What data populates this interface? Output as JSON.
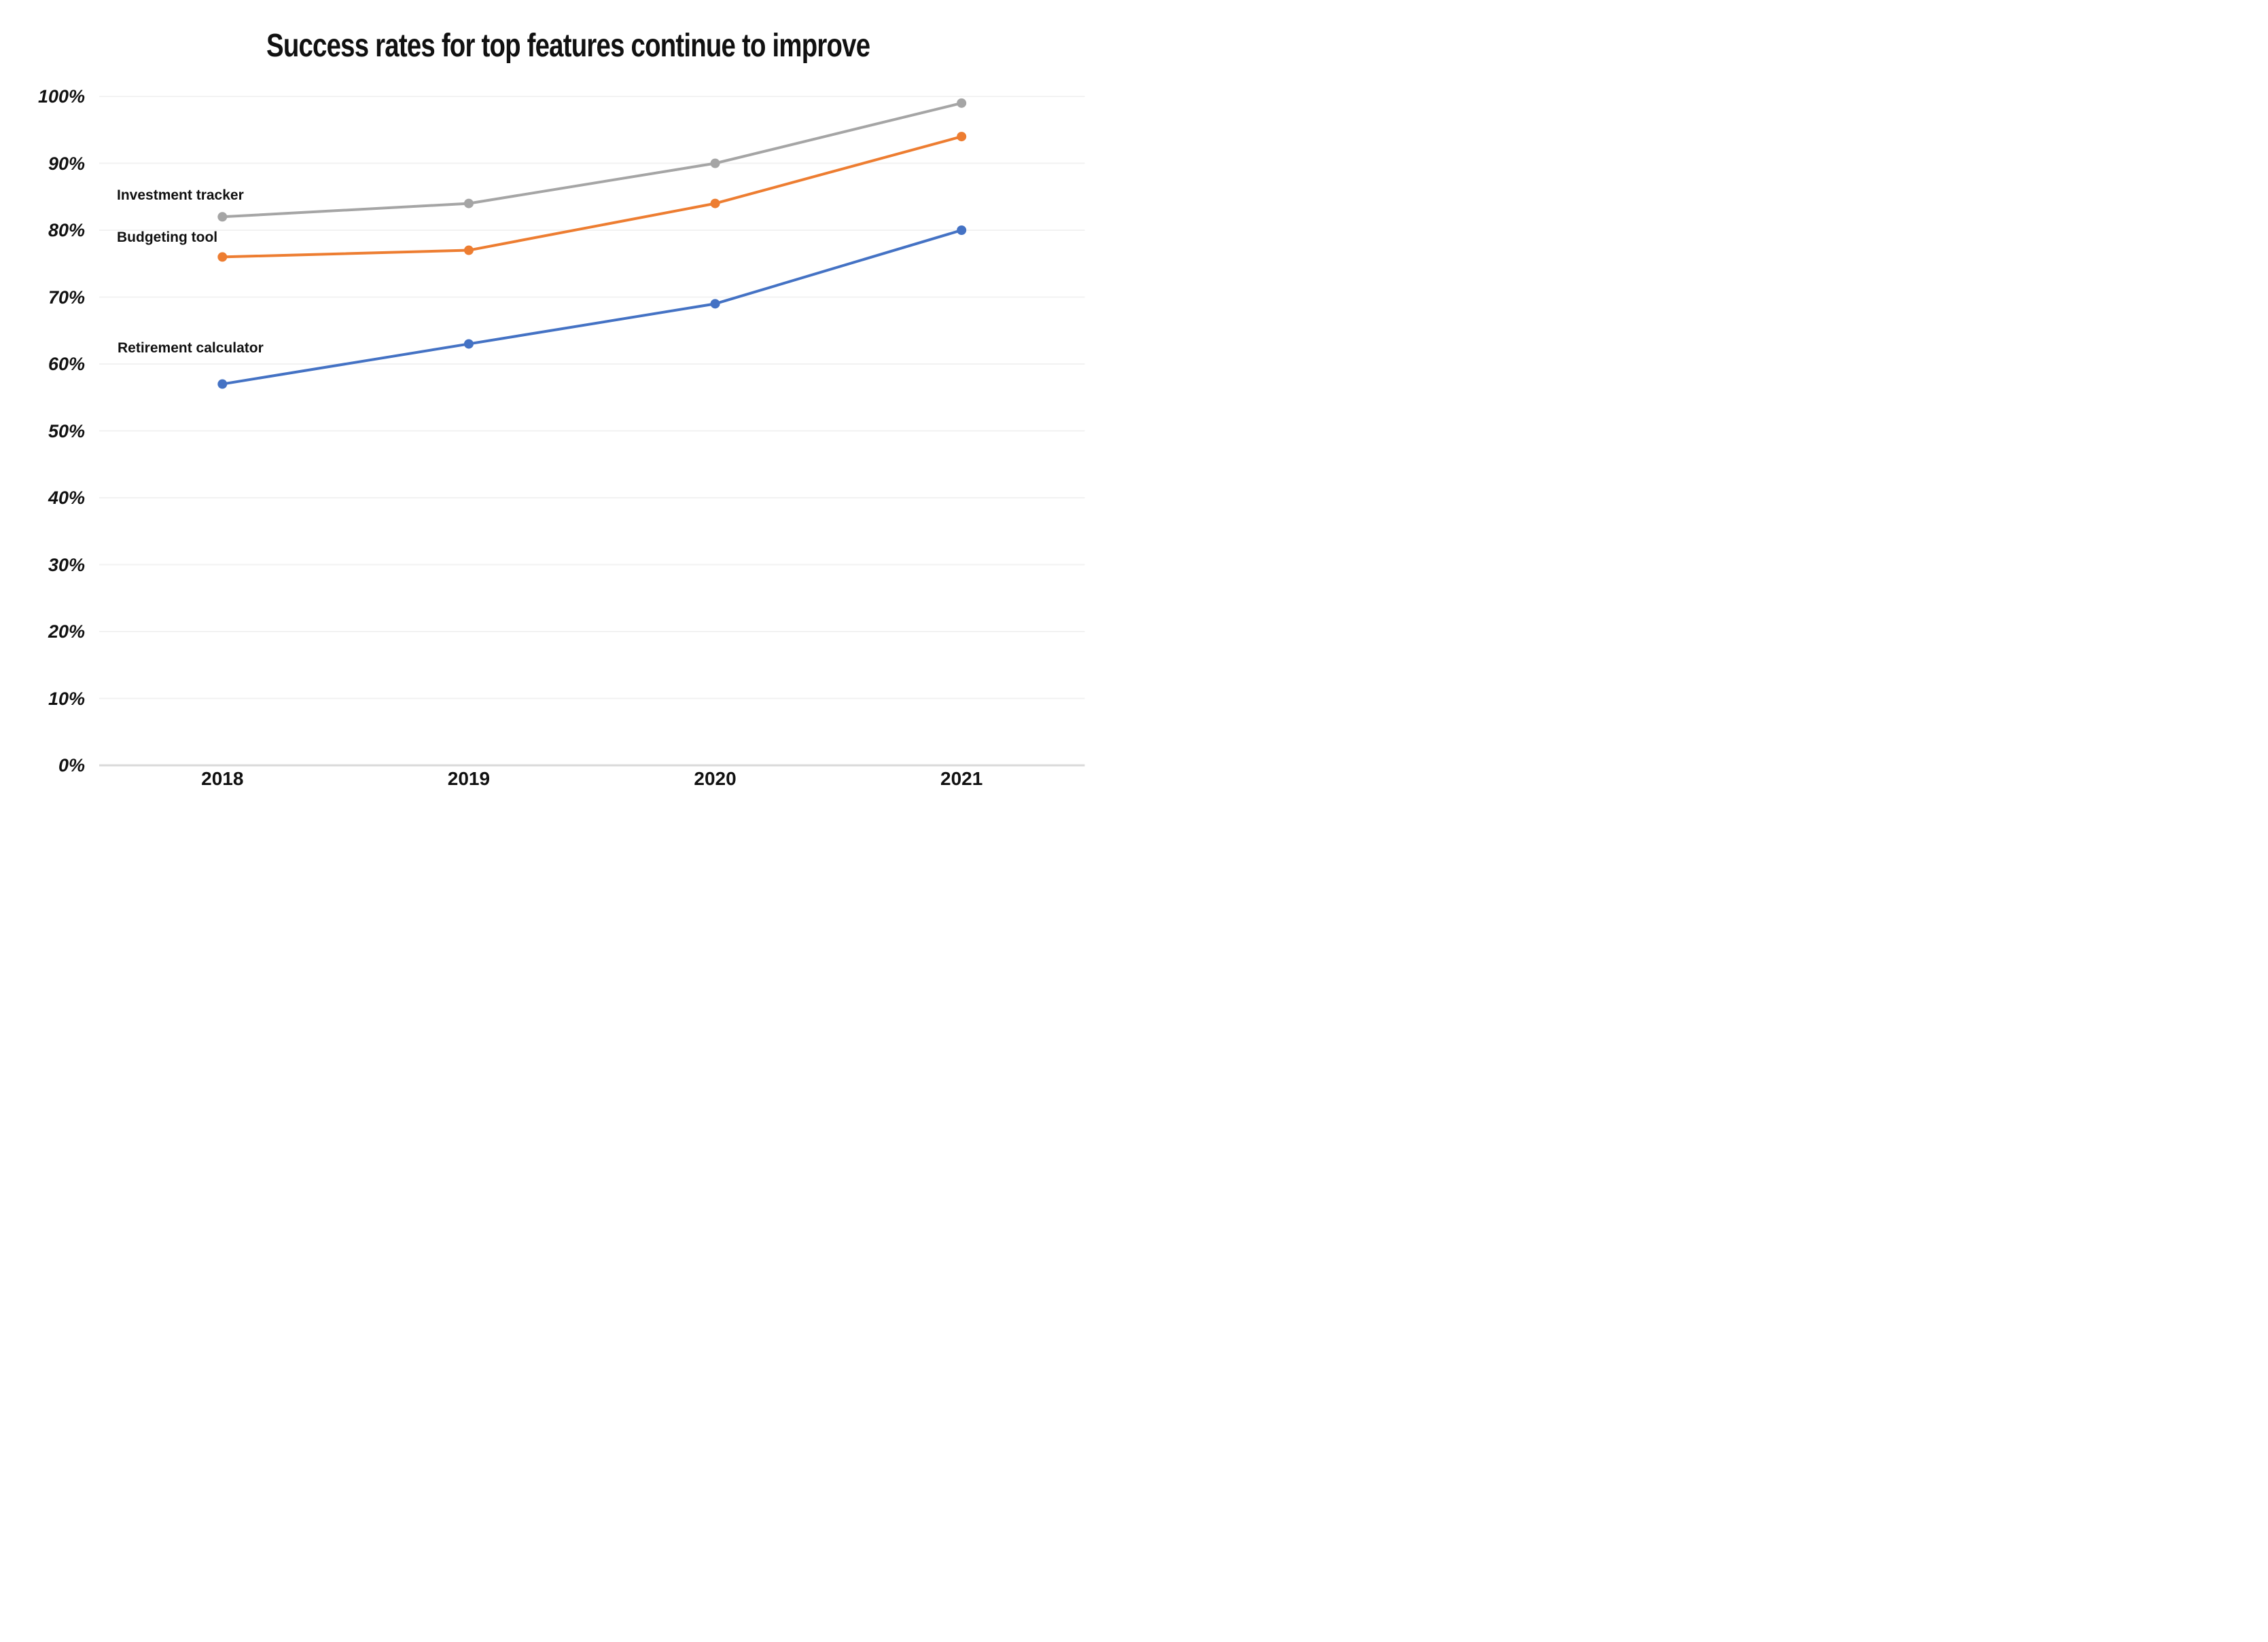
{
  "chart_data": {
    "type": "line",
    "title": "Success rates for top features continue to improve",
    "categories": [
      "2018",
      "2019",
      "2020",
      "2021"
    ],
    "series": [
      {
        "name": "Investment tracker",
        "values": [
          82,
          84,
          90,
          99
        ],
        "color": "#a5a5a5"
      },
      {
        "name": "Budgeting tool",
        "values": [
          76,
          77,
          84,
          94
        ],
        "color": "#ed7d31"
      },
      {
        "name": "Retirement calculator",
        "values": [
          57,
          63,
          69,
          80
        ],
        "color": "#4472c4"
      }
    ],
    "y_axis": {
      "min": 0,
      "max": 100,
      "step": 10,
      "tick_labels": [
        "0%",
        "10%",
        "20%",
        "30%",
        "40%",
        "50%",
        "60%",
        "70%",
        "80%",
        "90%",
        "100%"
      ],
      "format": "percent"
    },
    "x_axis": {
      "tick_labels": [
        "2018",
        "2019",
        "2020",
        "2021"
      ]
    },
    "grid": {
      "show": true,
      "gridline_color": "#f2f2f2",
      "axis_line_color": "#d9d9d9"
    },
    "legend": {
      "position": "inline-labels-left"
    },
    "marker": "circle",
    "text_color": "#111111",
    "background_color": "#ffffff"
  }
}
